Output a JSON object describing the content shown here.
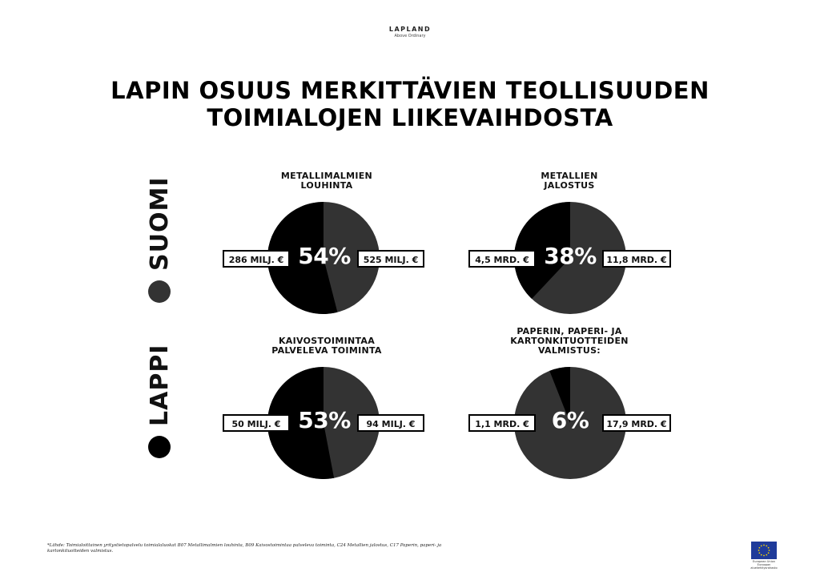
{
  "logo": {
    "brand": "LAPLAND",
    "tagline": "Above Ordinary"
  },
  "title_lines": [
    "LAPIN OSUUS MERKITTÄVIEN TEOLLISUUDEN",
    "TOIMIALOJEN LIIKEVAIHDOSTA"
  ],
  "legend": [
    {
      "label": "SUOMI",
      "color": "#333333"
    },
    {
      "label": "LAPPI",
      "color": "#000000"
    }
  ],
  "colors": {
    "lappi": "#000000",
    "suomi": "#333333"
  },
  "chart_data": [
    {
      "type": "pie",
      "title_lines": [
        "METALLIMALMIEN",
        "LOUHINTA"
      ],
      "percent_label": "54%",
      "lappi_share": 54,
      "lappi_value_label": "286 MILJ. €",
      "suomi_value_label": "525 MILJ. €"
    },
    {
      "type": "pie",
      "title_lines": [
        "METALLIEN",
        "JALOSTUS"
      ],
      "percent_label": "38%",
      "lappi_share": 38,
      "lappi_value_label": "4,5 MRD. €",
      "suomi_value_label": "11,8 MRD. €"
    },
    {
      "type": "pie",
      "title_lines": [
        "KAIVOSTOIMINTAA",
        "PALVELEVA TOIMINTA"
      ],
      "percent_label": "53%",
      "lappi_share": 53,
      "lappi_value_label": "50 MILJ. €",
      "suomi_value_label": "94 MILJ. €"
    },
    {
      "type": "pie",
      "title_lines": [
        "PAPERIN, PAPERI- JA",
        "KARTONKITUOTTEIDEN",
        "VALMISTUS:"
      ],
      "percent_label": "6%",
      "lappi_share": 6,
      "lappi_value_label": "1,1 MRD. €",
      "suomi_value_label": "17,9 MRD. €"
    }
  ],
  "source_lines": [
    "*Lähde: Toimialoittainen yritystietopalvelu toimialaluokat B07 Metallimalmien louhinta, B09 Kaivostoimintaa palveleva toiminta, C24 Metallien jalostus, C17 Paperin, paperi- ja",
    "kartonkituotteiden valmistus."
  ],
  "eu_caption": [
    "European Union",
    "Euroopan aluekehitysrahasto"
  ]
}
